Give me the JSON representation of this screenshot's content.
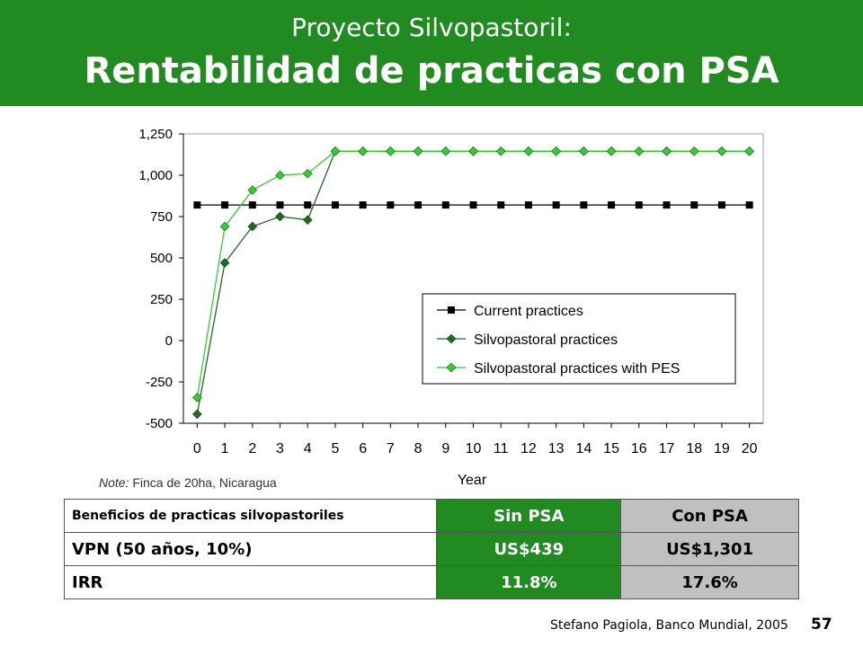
{
  "header": {
    "title_line1": "Proyecto Silvopastoril:",
    "title_line2": "Rentabilidad de practicas con PSA"
  },
  "chart_data": {
    "type": "line",
    "title": "",
    "xlabel": "Year",
    "ylabel": "",
    "x": [
      0,
      1,
      2,
      3,
      4,
      5,
      6,
      7,
      8,
      9,
      10,
      11,
      12,
      13,
      14,
      15,
      16,
      17,
      18,
      19,
      20
    ],
    "xlim": [
      -0.5,
      20.5
    ],
    "ylim": [
      -500,
      1250
    ],
    "yticks": [
      1250,
      1000,
      750,
      500,
      250,
      0,
      -250,
      -500
    ],
    "ytick_labels": [
      "1,250",
      "1,000",
      "750",
      "500",
      "250",
      "0",
      "-250",
      "-500"
    ],
    "grid": false,
    "legend_position": "center-right",
    "series": [
      {
        "name": "Current practices",
        "color": "#000000",
        "marker": "square",
        "values": [
          820,
          820,
          820,
          820,
          820,
          820,
          820,
          820,
          820,
          820,
          820,
          820,
          820,
          820,
          820,
          820,
          820,
          820,
          820,
          820,
          820
        ]
      },
      {
        "name": "Silvopastoral practices",
        "color": "#1f6b1f",
        "marker": "diamond",
        "values": [
          -445,
          470,
          690,
          750,
          730,
          1145,
          1145,
          1145,
          1145,
          1145,
          1145,
          1145,
          1145,
          1145,
          1145,
          1145,
          1145,
          1145,
          1145,
          1145,
          1145
        ]
      },
      {
        "name": "Silvopastoral practices with PES",
        "color": "#33cc33",
        "marker": "diamond",
        "values": [
          -345,
          690,
          910,
          1000,
          1010,
          1145,
          1145,
          1145,
          1145,
          1145,
          1145,
          1145,
          1145,
          1145,
          1145,
          1145,
          1145,
          1145,
          1145,
          1145,
          1145
        ]
      }
    ]
  },
  "note": {
    "label": "Note:",
    "text": " Finca de 20ha, Nicaragua"
  },
  "table": {
    "header": [
      "Beneficios de practicas silvopastoriles",
      "Sin PSA",
      "Con PSA"
    ],
    "rows": [
      [
        "VPN (50 años, 10%)",
        "US$439",
        "US$1,301"
      ],
      [
        "IRR",
        "11.8%",
        "17.6%"
      ]
    ]
  },
  "footer": {
    "credit": "Stefano Pagiola, Banco Mundial, 2005",
    "page_number": "57"
  }
}
